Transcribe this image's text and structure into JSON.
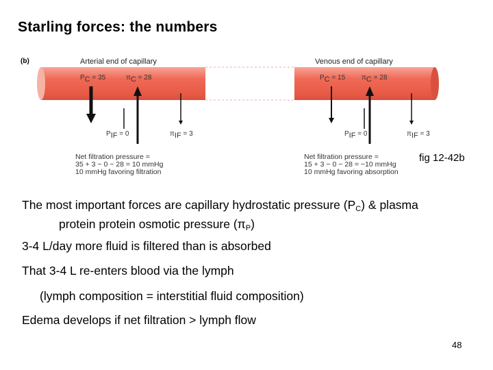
{
  "slide": {
    "title": "Starling forces: the numbers",
    "page_number": "48"
  },
  "figure": {
    "label": "(b)",
    "reference": "fig 12-42b",
    "arterial": {
      "heading": "Arterial end of capillary",
      "pc": "P",
      "pc_sub": "C",
      "pc_val": "= 35",
      "pic": "π",
      "pic_sub": "C",
      "pic_val": "= 28",
      "pif": "P",
      "pif_sub": "IF",
      "pif_val": "= 0",
      "piif": "π",
      "piif_sub": "IF",
      "piif_val": "= 3",
      "net_lines": [
        "Net filtration pressure =",
        "35 + 3 − 0 − 28 = 10 mmHg",
        "10 mmHg favoring filtration"
      ]
    },
    "venous": {
      "heading": "Venous end of capillary",
      "pc": "P",
      "pc_sub": "C",
      "pc_val": "= 15",
      "pic": "π",
      "pic_sub": "C",
      "pic_val": "= 28",
      "pif": "P",
      "pif_sub": "IF",
      "pif_val": "= 0",
      "piif": "π",
      "piif_sub": "IF",
      "piif_val": "= 3",
      "net_lines": [
        "Net filtration pressure =",
        "15 + 3 − 0 − 28 = −10 mmHg",
        "10 mmHg favoring absorption"
      ]
    },
    "colors": {
      "vessel": "#ef6a57",
      "vessel_light": "#f7a596",
      "vessel_dark": "#d9503e"
    }
  },
  "text": {
    "p1_a": "The most important forces are capillary hydrostatic pressure (P",
    "p1_a_sub": "C",
    "p1_b": ") & plasma",
    "p1_c": "protein protein osmotic pressure (",
    "p1_c_sym": "π",
    "p1_c_sub": "P",
    "p1_d": ")",
    "p2": "3-4 L/day more fluid is filtered than is absorbed",
    "p3": "That 3-4 L re-enters blood via the lymph",
    "p4": "(lymph composition = interstitial fluid composition)",
    "p5": "Edema develops if net filtration > lymph flow"
  }
}
